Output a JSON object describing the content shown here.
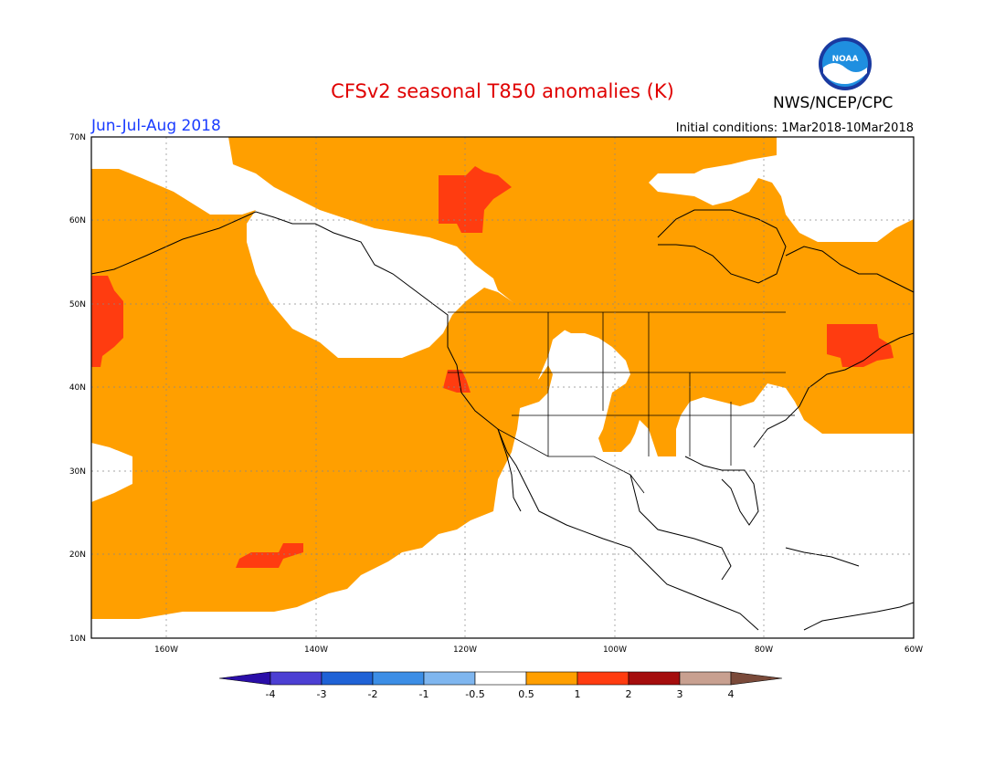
{
  "header": {
    "title": "CFSv2 seasonal T850 anomalies (K)",
    "agency": "NWS/NCEP/CPC",
    "season": "Jun-Jul-Aug 2018",
    "initial_conditions": "Initial conditions: 1Mar2018-10Mar2018",
    "logo_text": "NOAA"
  },
  "axes": {
    "lat_labels": [
      "70N",
      "60N",
      "50N",
      "40N",
      "30N",
      "20N",
      "10N"
    ],
    "lon_labels": [
      "160W",
      "140W",
      "120W",
      "100W",
      "80W",
      "60W"
    ]
  },
  "colorbar": {
    "labels": [
      "-4",
      "-3",
      "-2",
      "-1",
      "-0.5",
      "0.5",
      "1",
      "2",
      "3",
      "4"
    ],
    "colors": [
      "#2a0ea8",
      "#4c3fd3",
      "#1f62d6",
      "#3c8ee6",
      "#7fb6ef",
      "#ffffff",
      "#ff9f00",
      "#ff3c10",
      "#a50d0d",
      "#c8a090",
      "#7a4a3a"
    ]
  },
  "colors": {
    "orange": "#ff9f00",
    "red": "#ff3c10",
    "title": "#e00000",
    "season": "#1a3cff"
  }
}
